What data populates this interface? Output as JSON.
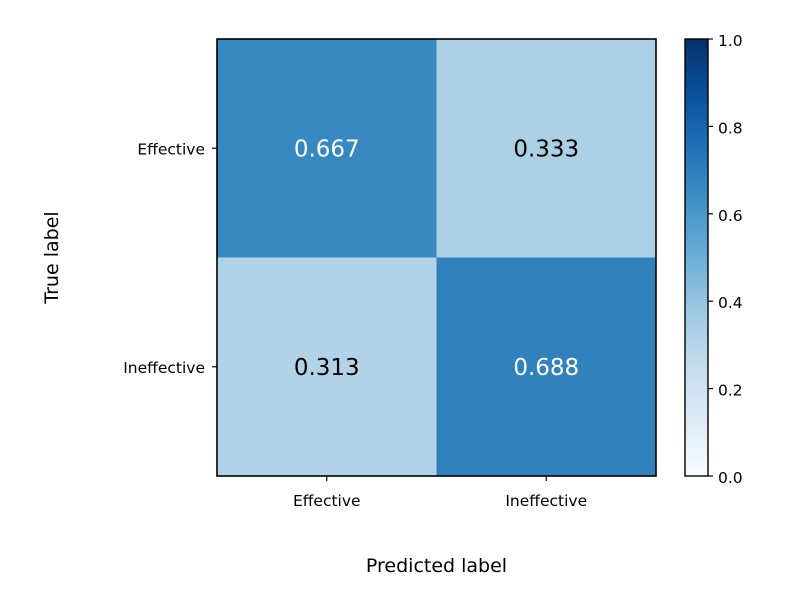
{
  "chart_data": {
    "type": "heatmap",
    "title": "",
    "xlabel": "Predicted label",
    "ylabel": "True label",
    "x_categories": [
      "Effective",
      "Ineffective"
    ],
    "y_categories": [
      "Effective",
      "Ineffective"
    ],
    "values": [
      [
        0.667,
        0.333
      ],
      [
        0.313,
        0.688
      ]
    ],
    "cell_labels": [
      [
        "0.667",
        "0.333"
      ],
      [
        "0.313",
        "0.688"
      ]
    ],
    "colorbar": {
      "range": [
        0.0,
        1.0
      ],
      "ticks": [
        "0.0",
        "0.2",
        "0.4",
        "0.6",
        "0.8",
        "1.0"
      ],
      "colormap": "Blues"
    },
    "grid": false,
    "legend": "none"
  }
}
